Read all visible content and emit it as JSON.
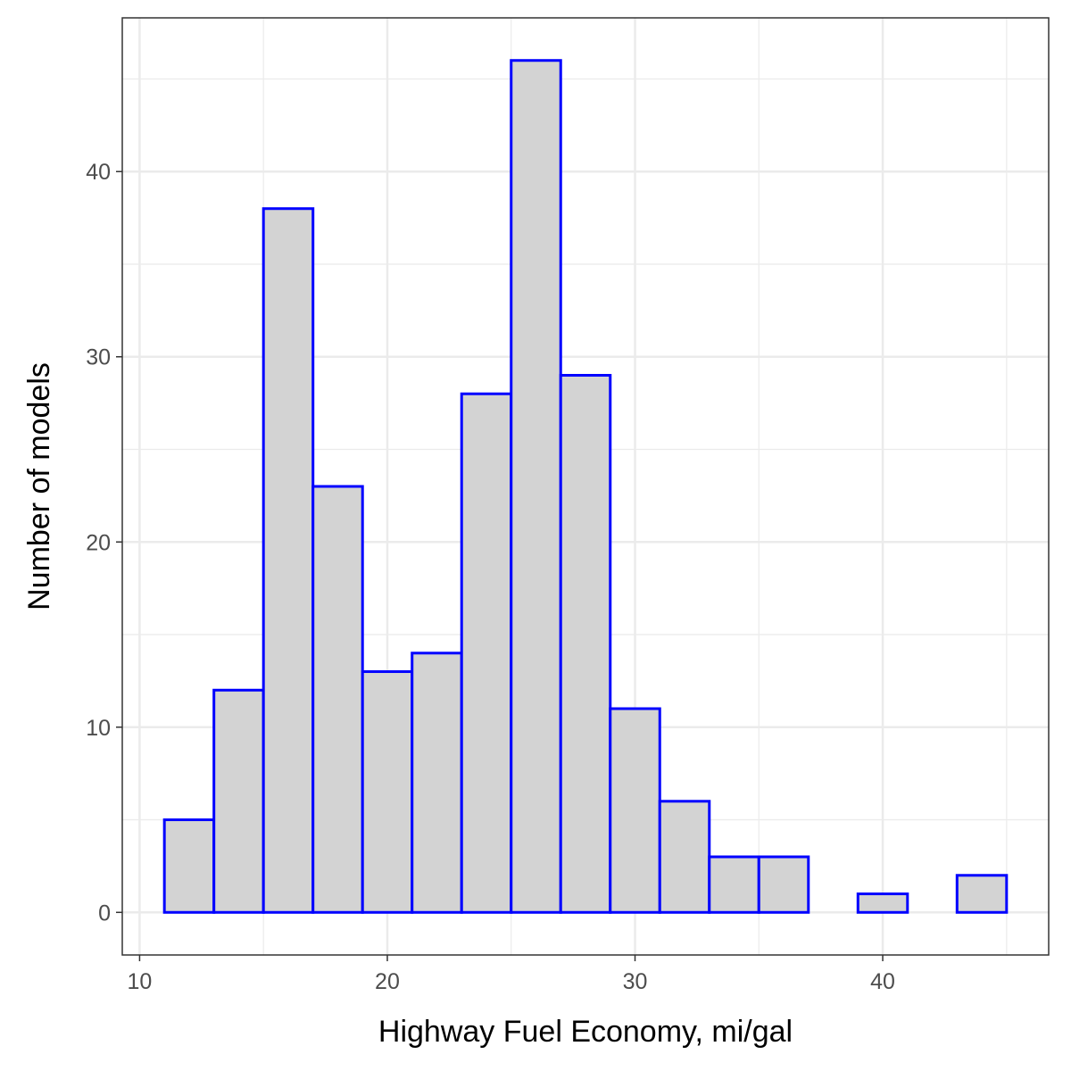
{
  "chart_data": {
    "type": "bar",
    "title": "",
    "xlabel": "Highway Fuel Economy, mi/gal",
    "ylabel": "Number of models",
    "bins": [
      {
        "start": 11,
        "end": 13,
        "count": 5
      },
      {
        "start": 13,
        "end": 15,
        "count": 12
      },
      {
        "start": 15,
        "end": 17,
        "count": 38
      },
      {
        "start": 17,
        "end": 19,
        "count": 23
      },
      {
        "start": 19,
        "end": 21,
        "count": 13
      },
      {
        "start": 21,
        "end": 23,
        "count": 14
      },
      {
        "start": 23,
        "end": 25,
        "count": 28
      },
      {
        "start": 25,
        "end": 27,
        "count": 46
      },
      {
        "start": 27,
        "end": 29,
        "count": 29
      },
      {
        "start": 29,
        "end": 31,
        "count": 11
      },
      {
        "start": 31,
        "end": 33,
        "count": 6
      },
      {
        "start": 33,
        "end": 35,
        "count": 3
      },
      {
        "start": 35,
        "end": 37,
        "count": 3
      },
      {
        "start": 37,
        "end": 39,
        "count": 0
      },
      {
        "start": 39,
        "end": 41,
        "count": 1
      },
      {
        "start": 41,
        "end": 43,
        "count": 0
      },
      {
        "start": 43,
        "end": 45,
        "count": 2
      }
    ],
    "xlim": [
      9.3,
      46.7
    ],
    "ylim": [
      -2.3,
      48.3
    ],
    "xticks": [
      10,
      20,
      30,
      40
    ],
    "xtick_labels": [
      "10",
      "20",
      "30",
      "40"
    ],
    "yticks": [
      0,
      10,
      20,
      30,
      40
    ],
    "ytick_labels": [
      "0",
      "10",
      "20",
      "30",
      "40"
    ],
    "x_minor_breaks": [
      15,
      25,
      35,
      45
    ],
    "y_minor_breaks": [
      5,
      15,
      25,
      35,
      45
    ],
    "grid": true,
    "legend": "none",
    "colors": {
      "bar_fill": "#d3d3d3",
      "bar_outline": "#0000ff",
      "grid": "#ebebeb",
      "panel_border": "#333333",
      "tick_text": "#4d4d4d",
      "axis_title": "#000000"
    }
  }
}
